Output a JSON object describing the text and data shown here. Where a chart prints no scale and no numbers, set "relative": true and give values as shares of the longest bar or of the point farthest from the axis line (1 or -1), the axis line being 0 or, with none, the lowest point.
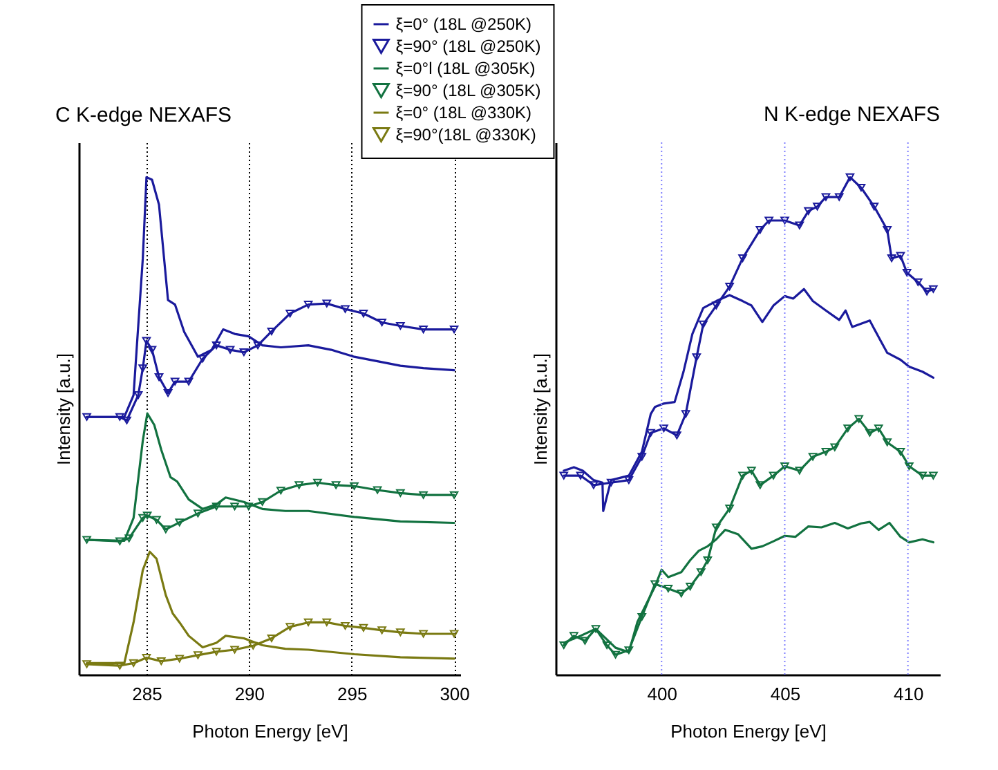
{
  "chart_data": [
    {
      "type": "line",
      "title": "C K-edge  NEXAFS",
      "xlabel": "Photon Energy [eV]",
      "ylabel": "Intensity [a.u.]",
      "relative": true,
      "xlim": [
        281.7,
        300.3
      ],
      "xticks": [
        285,
        290,
        295,
        300
      ],
      "grid": "x",
      "legend": "top right",
      "line_style": "solid",
      "series": [
        {
          "name": "ξ=0° (18L @250K)",
          "color": "#1a1a9c",
          "marker": "none",
          "x": [
            282.09,
            283.92,
            284.37,
            284.82,
            285.0,
            285.27,
            285.61,
            286.05,
            286.39,
            286.84,
            287.51,
            288.18,
            288.74,
            289.3,
            289.98,
            290.65,
            291.55,
            292.89,
            294.01,
            295.13,
            296.26,
            297.38,
            298.5,
            300.0
          ],
          "values": [
            0.518,
            0.518,
            0.562,
            0.836,
            1.0,
            0.995,
            0.945,
            0.753,
            0.744,
            0.689,
            0.639,
            0.653,
            0.694,
            0.685,
            0.68,
            0.662,
            0.658,
            0.662,
            0.653,
            0.639,
            0.63,
            0.621,
            0.616,
            0.612
          ]
        },
        {
          "name": "ξ=90° (18L @250K)",
          "color": "#1a1a9c",
          "marker": "triangle",
          "x": [
            282.09,
            283.7,
            284.04,
            284.6,
            284.82,
            285.0,
            285.27,
            285.61,
            286.05,
            286.39,
            287.06,
            287.74,
            288.41,
            289.08,
            289.75,
            290.43,
            291.1,
            292.0,
            292.89,
            293.79,
            294.69,
            295.58,
            296.48,
            297.38,
            298.5,
            300.0
          ],
          "values": [
            0.518,
            0.518,
            0.511,
            0.562,
            0.616,
            0.671,
            0.653,
            0.598,
            0.566,
            0.589,
            0.589,
            0.635,
            0.662,
            0.653,
            0.648,
            0.662,
            0.69,
            0.726,
            0.744,
            0.746,
            0.735,
            0.726,
            0.708,
            0.701,
            0.694,
            0.694
          ]
        },
        {
          "name": "ξ=0°l (18L @305K)",
          "color": "#127240",
          "marker": "none",
          "x": [
            282.09,
            283.92,
            284.37,
            284.82,
            285.04,
            285.38,
            285.72,
            286.17,
            286.5,
            287.06,
            287.74,
            288.41,
            288.86,
            289.75,
            290.65,
            291.77,
            292.89,
            295.13,
            297.38,
            300.0
          ],
          "values": [
            0.271,
            0.269,
            0.315,
            0.47,
            0.525,
            0.502,
            0.452,
            0.397,
            0.388,
            0.352,
            0.333,
            0.342,
            0.356,
            0.347,
            0.333,
            0.329,
            0.329,
            0.317,
            0.308,
            0.305
          ]
        },
        {
          "name": "ξ=90° (18L @305K)",
          "color": "#127240",
          "marker": "triangle",
          "x": [
            282.09,
            283.7,
            284.15,
            284.82,
            285.04,
            285.49,
            285.94,
            286.61,
            287.51,
            288.41,
            289.3,
            289.98,
            290.65,
            291.55,
            292.44,
            293.34,
            294.24,
            295.13,
            296.26,
            297.38,
            298.5,
            300.0
          ],
          "values": [
            0.271,
            0.268,
            0.274,
            0.315,
            0.32,
            0.311,
            0.292,
            0.306,
            0.324,
            0.338,
            0.338,
            0.338,
            0.347,
            0.37,
            0.381,
            0.386,
            0.381,
            0.379,
            0.371,
            0.365,
            0.361,
            0.361
          ]
        },
        {
          "name": "ξ=0° (18L @330K)",
          "color": "#7a7a12",
          "marker": "none",
          "x": [
            282.09,
            283.92,
            284.37,
            284.82,
            285.16,
            285.49,
            285.94,
            286.28,
            286.61,
            287.06,
            287.74,
            288.41,
            288.86,
            289.75,
            290.65,
            291.77,
            292.89,
            295.13,
            297.38,
            300.0
          ],
          "values": [
            0.023,
            0.023,
            0.105,
            0.21,
            0.247,
            0.233,
            0.16,
            0.123,
            0.105,
            0.078,
            0.055,
            0.064,
            0.078,
            0.073,
            0.059,
            0.052,
            0.05,
            0.041,
            0.035,
            0.032
          ]
        },
        {
          "name": "ξ=90°(18L @330K)",
          "color": "#7a7a12",
          "marker": "triangle",
          "x": [
            282.09,
            283.7,
            284.37,
            285.0,
            285.72,
            286.61,
            287.51,
            288.41,
            289.3,
            290.2,
            291.1,
            292.0,
            292.89,
            293.79,
            294.69,
            295.58,
            296.48,
            297.38,
            298.5,
            300.0
          ],
          "values": [
            0.021,
            0.018,
            0.023,
            0.034,
            0.027,
            0.032,
            0.039,
            0.046,
            0.05,
            0.058,
            0.073,
            0.096,
            0.105,
            0.105,
            0.098,
            0.094,
            0.089,
            0.085,
            0.082,
            0.082
          ]
        }
      ]
    },
    {
      "type": "line",
      "title": "N K-edge NEXAFS",
      "xlabel": "Photon Energy [eV]",
      "ylabel": "Intensity [a.u.]",
      "relative": true,
      "xlim": [
        395.7,
        411.3
      ],
      "xticks": [
        400,
        405,
        410
      ],
      "line_style": "solid",
      "ref_lines": [
        {
          "axis": "x",
          "value": 400,
          "color": "#8080ff",
          "line_style": "dotted"
        },
        {
          "axis": "x",
          "value": 405,
          "color": "#8080ff",
          "line_style": "dotted"
        },
        {
          "axis": "x",
          "value": 410,
          "color": "#8080ff",
          "line_style": "dotted"
        }
      ],
      "series": [
        {
          "color": "#1a1a9c",
          "marker": "none",
          "x": [
            396.03,
            396.44,
            396.8,
            397.24,
            397.6,
            397.63,
            397.95,
            398.67,
            399.2,
            399.56,
            399.73,
            400.09,
            400.53,
            400.89,
            401.25,
            401.69,
            402.22,
            402.76,
            403.29,
            403.65,
            404.09,
            404.54,
            405.0,
            405.34,
            405.78,
            406.14,
            406.67,
            407.21,
            407.47,
            407.74,
            408.45,
            408.63,
            409.16,
            409.7,
            410.05,
            410.59,
            411.03
          ],
          "values": [
            0.41,
            0.417,
            0.41,
            0.391,
            0.386,
            0.329,
            0.391,
            0.4,
            0.448,
            0.524,
            0.538,
            0.545,
            0.548,
            0.609,
            0.685,
            0.737,
            0.751,
            0.763,
            0.751,
            0.742,
            0.709,
            0.742,
            0.761,
            0.756,
            0.775,
            0.751,
            0.732,
            0.713,
            0.732,
            0.699,
            0.712,
            0.695,
            0.647,
            0.633,
            0.619,
            0.609,
            0.597
          ]
        },
        {
          "color": "#1a1a9c",
          "marker": "triangle",
          "x": [
            396.03,
            396.71,
            397.24,
            397.95,
            398.67,
            399.2,
            399.56,
            400.09,
            400.62,
            400.98,
            401.42,
            401.69,
            402.22,
            402.76,
            403.29,
            404.0,
            404.36,
            405.0,
            405.6,
            405.96,
            406.32,
            406.67,
            407.21,
            407.65,
            408.1,
            408.63,
            409.16,
            409.34,
            409.7,
            409.96,
            410.41,
            410.77,
            411.03
          ],
          "values": [
            0.4,
            0.4,
            0.381,
            0.386,
            0.391,
            0.438,
            0.486,
            0.495,
            0.481,
            0.524,
            0.638,
            0.704,
            0.742,
            0.78,
            0.837,
            0.894,
            0.913,
            0.913,
            0.903,
            0.932,
            0.941,
            0.96,
            0.96,
            1.0,
            0.979,
            0.941,
            0.894,
            0.837,
            0.842,
            0.808,
            0.789,
            0.77,
            0.775
          ]
        },
        {
          "color": "#127240",
          "marker": "none",
          "x": [
            396.03,
            396.71,
            397.33,
            398.13,
            398.67,
            399.02,
            399.73,
            400.0,
            400.27,
            400.8,
            401.16,
            401.51,
            401.87,
            402.22,
            402.58,
            403.11,
            403.65,
            404.09,
            404.54,
            405.0,
            405.43,
            405.96,
            406.49,
            407.03,
            407.56,
            408.1,
            408.45,
            408.81,
            409.25,
            409.7,
            410.05,
            410.59,
            411.03
          ],
          "values": [
            0.064,
            0.078,
            0.092,
            0.054,
            0.045,
            0.106,
            0.177,
            0.211,
            0.196,
            0.206,
            0.23,
            0.249,
            0.258,
            0.272,
            0.291,
            0.282,
            0.253,
            0.258,
            0.268,
            0.279,
            0.277,
            0.298,
            0.296,
            0.305,
            0.294,
            0.304,
            0.307,
            0.291,
            0.305,
            0.277,
            0.266,
            0.272,
            0.266
          ]
        },
        {
          "color": "#127240",
          "marker": "triangle",
          "x": [
            396.03,
            396.44,
            396.89,
            397.33,
            397.78,
            398.13,
            398.67,
            399.2,
            399.73,
            400.27,
            400.8,
            401.16,
            401.6,
            401.87,
            402.22,
            402.76,
            403.29,
            403.65,
            404.0,
            404.54,
            405.0,
            405.6,
            406.14,
            406.67,
            407.03,
            407.56,
            408.01,
            408.45,
            408.81,
            409.16,
            409.7,
            410.05,
            410.59,
            411.03
          ],
          "values": [
            0.059,
            0.078,
            0.068,
            0.092,
            0.059,
            0.04,
            0.049,
            0.116,
            0.182,
            0.173,
            0.163,
            0.177,
            0.206,
            0.23,
            0.296,
            0.334,
            0.4,
            0.41,
            0.381,
            0.4,
            0.419,
            0.41,
            0.438,
            0.448,
            0.457,
            0.495,
            0.514,
            0.486,
            0.495,
            0.467,
            0.448,
            0.419,
            0.4,
            0.4
          ]
        }
      ]
    }
  ]
}
